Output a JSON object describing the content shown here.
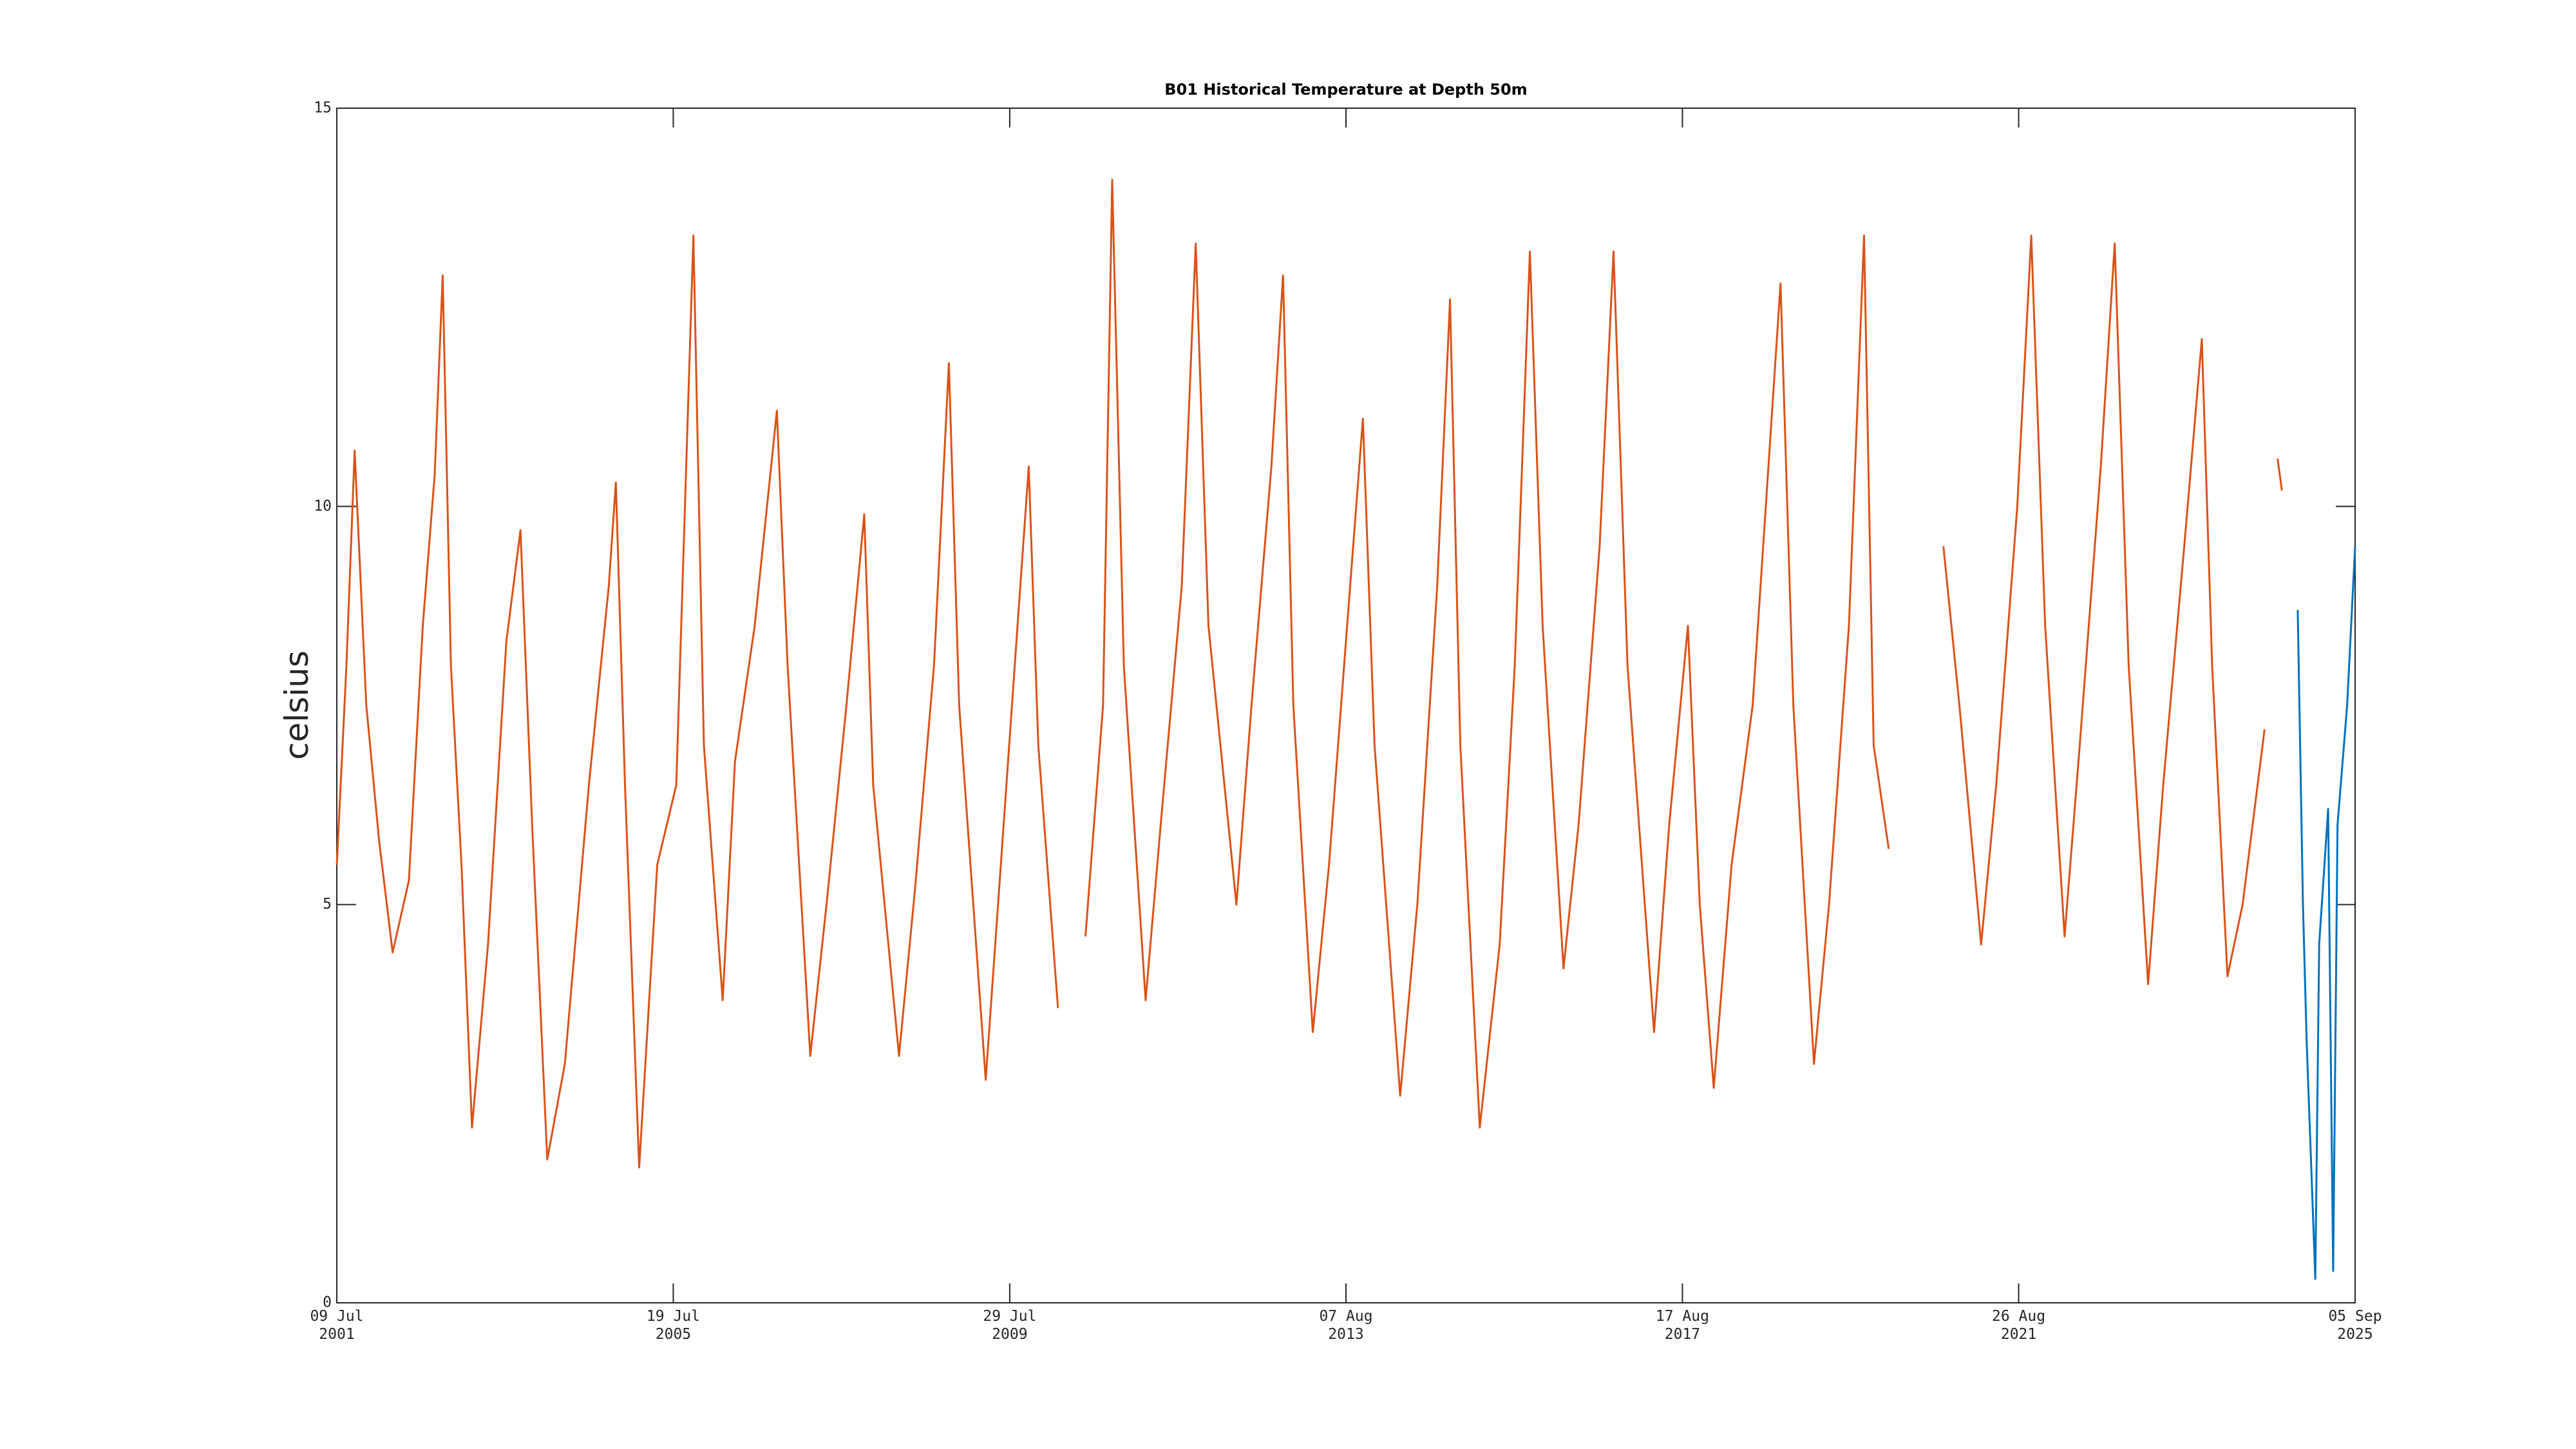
{
  "chart_data": {
    "type": "line",
    "title": "B01 Historical Temperature at Depth 50m",
    "y_label": "celsius",
    "xlim": [
      "2001-07-09",
      "2025-09-05"
    ],
    "xticks": [
      {
        "value": "2001-07-09",
        "label": [
          "09 Jul",
          "2001"
        ]
      },
      {
        "value": "2005-07-19",
        "label": [
          "19 Jul",
          "2005"
        ]
      },
      {
        "value": "2009-07-29",
        "label": [
          "29 Jul",
          "2009"
        ]
      },
      {
        "value": "2013-08-07",
        "label": [
          "07 Aug",
          "2013"
        ]
      },
      {
        "value": "2017-08-17",
        "label": [
          "17 Aug",
          "2017"
        ]
      },
      {
        "value": "2021-08-26",
        "label": [
          "26 Aug",
          "2021"
        ]
      },
      {
        "value": "2025-09-05",
        "label": [
          "05 Sep",
          "2025"
        ]
      }
    ],
    "ylim": [
      0,
      15
    ],
    "yticks": [
      0,
      5,
      10,
      15
    ],
    "grid": false,
    "series": [
      {
        "color": "#d95319",
        "x": [
          "2001-07-09",
          "2001-08-20",
          "2001-09-25",
          "2001-11-15",
          "2002-01-10",
          "2002-03-10",
          "2002-05-20",
          "2002-07-20",
          "2002-09-10",
          "2002-10-15",
          "2002-11-20",
          "2003-01-05",
          "2003-02-20",
          "2003-05-01",
          "2003-07-20",
          "2003-09-20",
          "2003-11-10",
          "2004-01-15",
          "2004-04-01",
          "2004-07-15",
          "2004-10-10",
          "2004-11-10",
          "2004-12-20",
          "2005-02-20",
          "2005-05-10",
          "2005-08-01",
          "2005-10-15",
          "2005-11-30",
          "2006-02-20",
          "2006-04-15",
          "2006-07-10",
          "2006-10-15",
          "2006-12-01",
          "2007-03-10",
          "2007-05-20",
          "2007-08-15",
          "2007-11-01",
          "2007-12-10",
          "2008-04-01",
          "2008-06-10",
          "2008-09-01",
          "2008-11-05",
          "2008-12-20",
          "2009-04-15",
          "2009-06-20",
          "2009-09-01",
          "2009-10-20",
          "2009-12-01",
          "2010-02-25",
          "2010-04-10",
          "2010-06-25",
          "2010-09-10",
          "2010-10-20",
          "2010-12-10",
          "2011-03-15",
          "2011-05-20",
          "2011-08-20",
          "2011-10-20",
          "2011-12-15",
          "2012-04-15",
          "2012-06-20",
          "2012-09-15",
          "2012-11-05",
          "2012-12-20",
          "2013-03-15",
          "2013-05-25",
          "2013-08-20",
          "2013-10-20",
          "2013-12-10",
          "2014-04-01",
          "2014-06-15",
          "2014-09-10",
          "2014-11-05",
          "2014-12-20",
          "2015-03-15",
          "2015-06-10",
          "2015-08-15",
          "2015-10-20",
          "2015-12-15",
          "2016-03-15",
          "2016-05-20",
          "2016-08-20",
          "2016-10-20",
          "2016-12-20",
          "2017-04-15",
          "2017-06-20",
          "2017-09-10",
          "2017-11-01",
          "2018-01-01",
          "2018-03-20",
          "2018-06-20",
          "2018-10-20",
          "2018-12-15",
          "2019-03-15",
          "2019-05-20",
          "2019-08-15",
          "2019-10-20",
          "2019-12-01",
          "2020-02-05",
          "2020-05-01",
          "2020-10-01",
          "2020-12-10",
          "2021-03-15",
          "2021-05-20",
          "2021-08-20",
          "2021-10-20",
          "2021-12-20",
          "2022-03-15",
          "2022-05-20",
          "2022-08-20",
          "2022-10-20",
          "2022-12-20",
          "2023-03-15",
          "2023-05-20",
          "2023-08-20",
          "2023-11-05",
          "2023-12-20",
          "2024-02-25",
          "2024-05-01",
          "2024-08-05",
          "2024-09-01",
          "2024-10-01",
          "2024-10-20"
        ],
        "values": [
          5.5,
          8.0,
          10.7,
          7.5,
          5.8,
          4.4,
          5.3,
          8.5,
          10.4,
          12.9,
          8.0,
          5.5,
          2.2,
          4.5,
          8.3,
          9.7,
          6.0,
          1.8,
          3.0,
          6.5,
          9.0,
          10.3,
          6.5,
          1.7,
          5.5,
          6.5,
          13.4,
          7.0,
          3.8,
          6.8,
          8.5,
          11.2,
          8.0,
          3.1,
          5.0,
          7.5,
          9.9,
          6.5,
          3.1,
          5.2,
          8.0,
          11.8,
          7.5,
          2.8,
          5.5,
          8.5,
          10.5,
          7.0,
          3.7,
          null,
          4.6,
          7.5,
          14.1,
          8.0,
          3.8,
          6.0,
          9.0,
          13.3,
          8.5,
          5.0,
          7.5,
          10.5,
          12.9,
          7.5,
          3.4,
          5.5,
          8.8,
          11.1,
          7.0,
          2.6,
          5.0,
          9.0,
          12.6,
          7.0,
          2.2,
          4.5,
          8.0,
          13.2,
          8.5,
          4.2,
          6.0,
          9.5,
          13.2,
          8.0,
          3.4,
          6.0,
          8.5,
          5.0,
          2.7,
          5.5,
          7.5,
          12.8,
          7.5,
          3.0,
          5.0,
          8.5,
          13.4,
          7.0,
          5.7,
          null,
          9.5,
          7.5,
          4.5,
          6.5,
          10.0,
          13.4,
          8.5,
          4.6,
          7.0,
          10.5,
          13.3,
          8.0,
          4.0,
          6.5,
          9.5,
          12.1,
          8.0,
          4.1,
          5.0,
          7.2,
          null,
          10.6,
          10.2
        ]
      },
      {
        "color": "#0072bd",
        "x": [
          "2024-12-28",
          "2025-01-20",
          "2025-02-05",
          "2025-03-15",
          "2025-04-01",
          "2025-05-10",
          "2025-06-01",
          "2025-06-20",
          "2025-08-01",
          "2025-09-05"
        ],
        "values": [
          8.7,
          5.0,
          3.3,
          0.3,
          4.5,
          6.2,
          0.4,
          6.0,
          7.5,
          9.5
        ]
      }
    ]
  }
}
